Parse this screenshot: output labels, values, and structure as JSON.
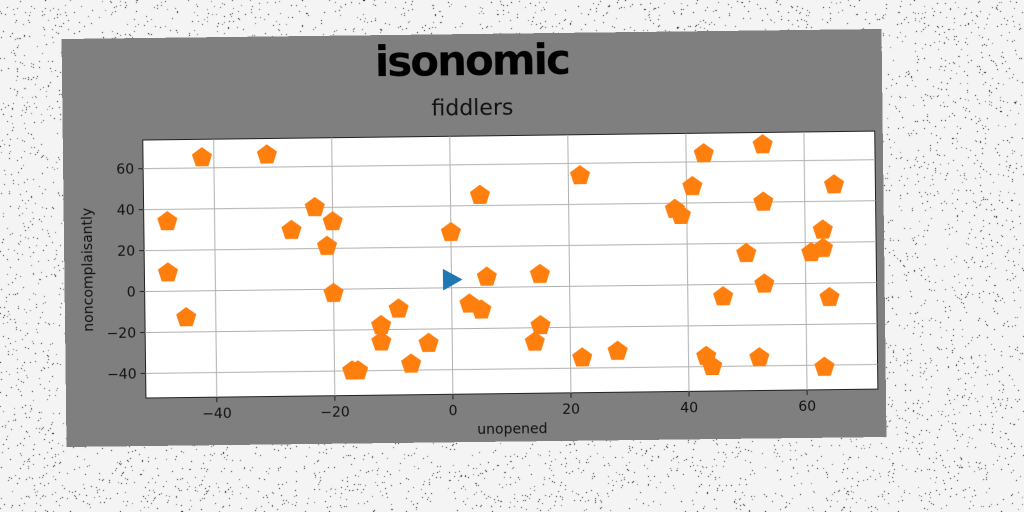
{
  "chart_data": {
    "type": "scatter",
    "title": "isonomic",
    "subtitle": "fiddlers",
    "xlabel": "unopened",
    "ylabel": "noncomplaisantly",
    "xlim": [
      -52,
      72
    ],
    "ylim": [
      -52,
      74
    ],
    "xticks": [
      -40,
      -20,
      0,
      20,
      40,
      60
    ],
    "yticks": [
      -40,
      -20,
      0,
      20,
      40,
      60
    ],
    "xtick_labels": [
      "−40",
      "−20",
      "0",
      "20",
      "40",
      "60"
    ],
    "ytick_labels": [
      "−40",
      "−20",
      "0",
      "20",
      "40",
      "60"
    ],
    "grid": true,
    "series": [
      {
        "marker": "triangle-right",
        "color": "#1f77b4",
        "points": [
          [
            0,
            4
          ]
        ]
      },
      {
        "marker": "pentagon",
        "color": "#ff7f0e",
        "points": [
          [
            -42,
            65
          ],
          [
            -31,
            66
          ],
          [
            -48,
            34
          ],
          [
            -48,
            9
          ],
          [
            -45,
            -13
          ],
          [
            -27,
            29
          ],
          [
            -23,
            40
          ],
          [
            -20,
            33
          ],
          [
            -21,
            21
          ],
          [
            -20,
            -2
          ],
          [
            -17,
            -40
          ],
          [
            -16,
            -40
          ],
          [
            -12,
            -18
          ],
          [
            -12,
            -26
          ],
          [
            -9,
            -10
          ],
          [
            -7,
            -37
          ],
          [
            -4,
            -27
          ],
          [
            0,
            27
          ],
          [
            3,
            -8
          ],
          [
            5,
            -11
          ],
          [
            5,
            45
          ],
          [
            6,
            5
          ],
          [
            14,
            -27
          ],
          [
            15,
            -19
          ],
          [
            15,
            6
          ],
          [
            22,
            54
          ],
          [
            22,
            -35
          ],
          [
            28,
            -32
          ],
          [
            38,
            37
          ],
          [
            39,
            34
          ],
          [
            41,
            48
          ],
          [
            43,
            64
          ],
          [
            43,
            -35
          ],
          [
            44,
            -40
          ],
          [
            46,
            -6
          ],
          [
            50,
            15
          ],
          [
            52,
            -36
          ],
          [
            53,
            0
          ],
          [
            53,
            68
          ],
          [
            53,
            40
          ],
          [
            61,
            15
          ],
          [
            63,
            17
          ],
          [
            63,
            26
          ],
          [
            64,
            -7
          ],
          [
            63,
            -41
          ],
          [
            65,
            48
          ]
        ]
      }
    ]
  },
  "colors": {
    "page_background": "#f4f4f4",
    "figure_background": "#7f7f7f",
    "plot_background": "#ffffff",
    "grid": "#b0b0b0"
  }
}
